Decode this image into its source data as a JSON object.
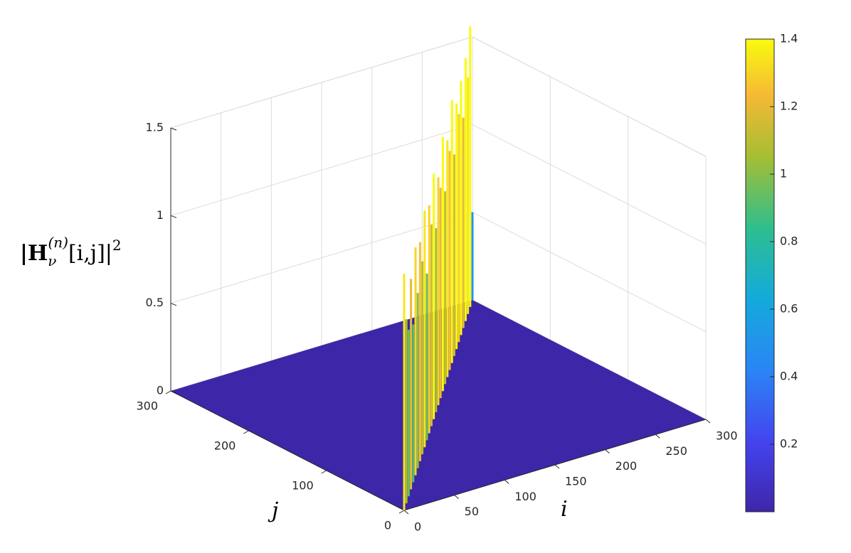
{
  "chart_data": {
    "type": "surface",
    "xlabel": "i",
    "ylabel": "j",
    "zlabel": {
      "base": "|H",
      "sub": "ν",
      "sup": "(n)",
      "rest": "[i,j]|",
      "exp": "2"
    },
    "xlim": [
      0,
      300
    ],
    "xticks": [
      0,
      50,
      100,
      150,
      200,
      250,
      300
    ],
    "ylim": [
      0,
      300
    ],
    "yticks": [
      0,
      100,
      200,
      300
    ],
    "zlim": [
      0,
      1.5
    ],
    "zticks": [
      0,
      0.5,
      1,
      1.5
    ],
    "colormap": "parula",
    "clim": [
      0,
      1.4
    ],
    "cticks": [
      0.2,
      0.4,
      0.6,
      0.8,
      1,
      1.2,
      1.4
    ],
    "floor_color": "#3e26a8",
    "x": [
      0,
      10,
      20,
      30,
      40,
      50,
      60,
      70,
      80,
      90,
      100,
      110,
      120,
      130,
      140,
      150,
      160,
      170,
      180,
      190,
      200,
      210,
      220,
      230,
      240,
      250,
      260,
      270,
      280,
      290,
      300
    ],
    "values": [
      1.35,
      1.05,
      0.95,
      1.2,
      0.9,
      1.3,
      1.0,
      1.25,
      1.1,
      1.35,
      0.95,
      1.3,
      1.15,
      1.4,
      1.05,
      1.3,
      1.2,
      1.45,
      1.1,
      1.35,
      1.25,
      1.5,
      1.15,
      1.4,
      1.3,
      1.45,
      1.2,
      1.5,
      1.35,
      1.6,
      0.5
    ],
    "grid": true
  }
}
